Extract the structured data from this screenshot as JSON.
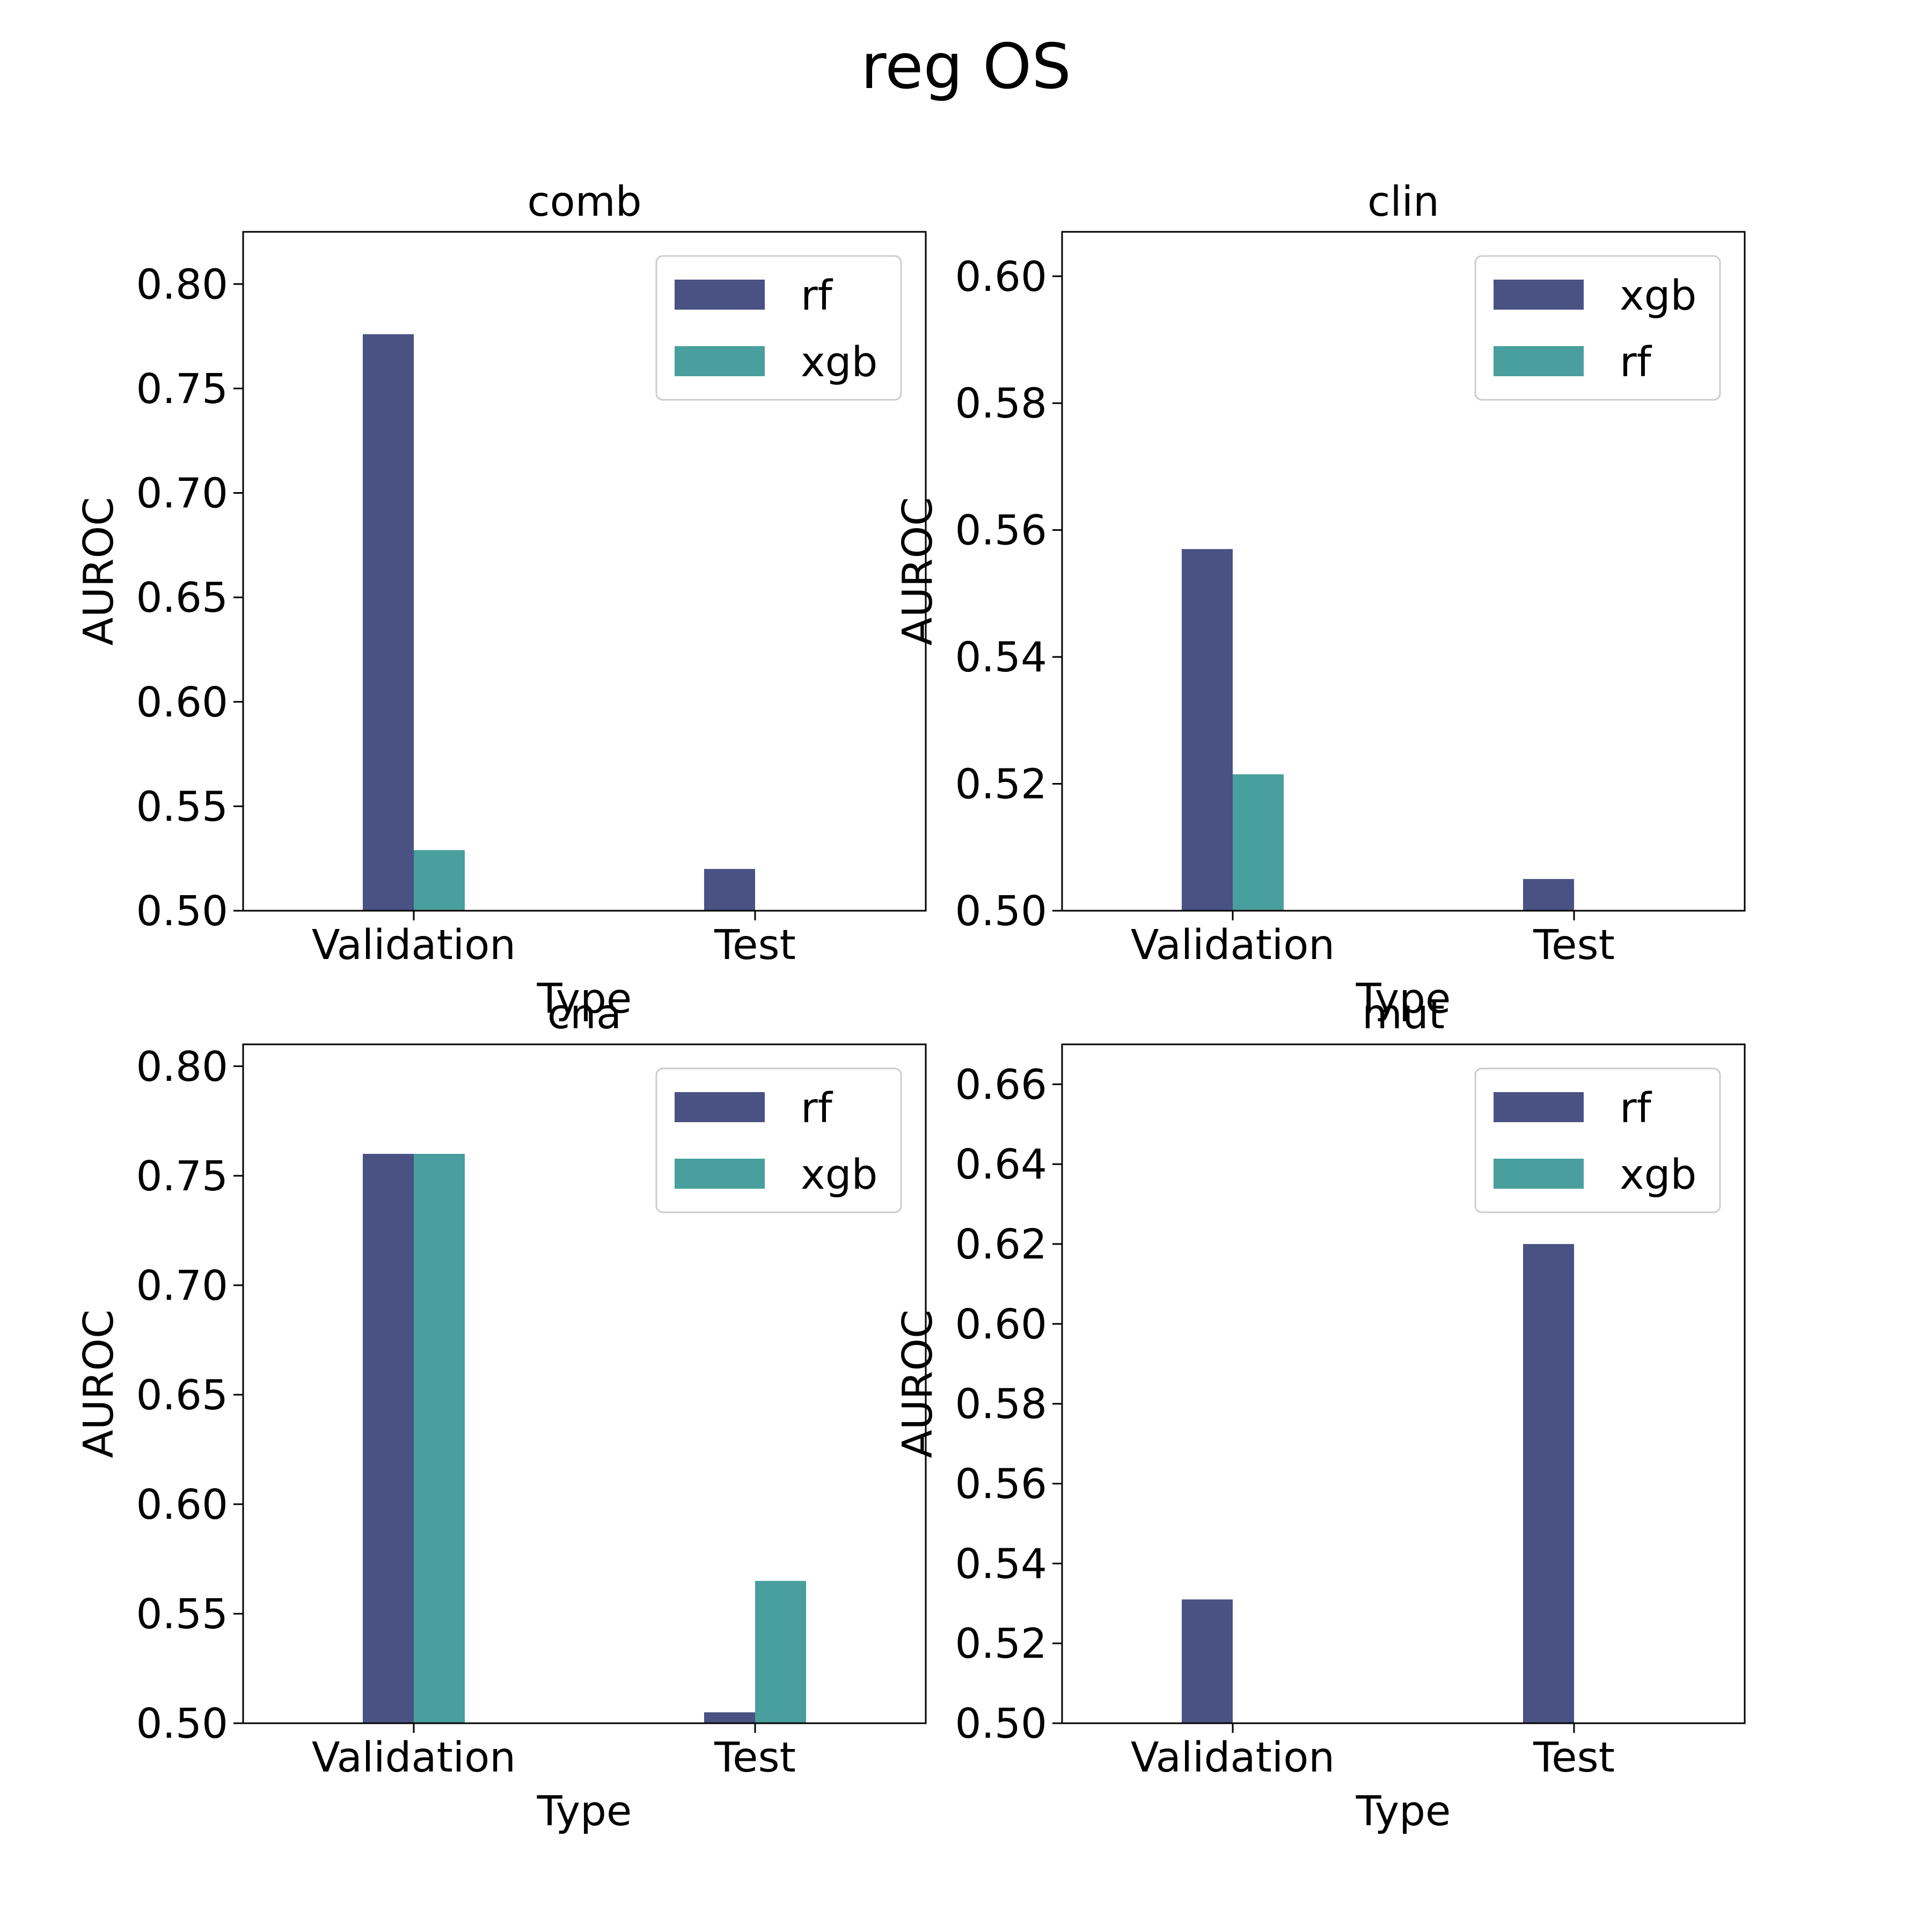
{
  "figure": {
    "suptitle": "reg OS",
    "colors": {
      "first_series": "#4a5283",
      "second_series": "#489f9d"
    }
  },
  "chart_data": [
    {
      "type": "bar",
      "title": "comb",
      "xlabel": "Type",
      "ylabel": "AUROC",
      "categories": [
        "Validation",
        "Test"
      ],
      "ylim": [
        0.5,
        0.825
      ],
      "yticks": [
        "0.50",
        "0.55",
        "0.60",
        "0.65",
        "0.70",
        "0.75",
        "0.80"
      ],
      "legend_position": "upper right",
      "series": [
        {
          "name": "rf",
          "color": "#4a5283",
          "values": [
            0.776,
            0.52
          ]
        },
        {
          "name": "xgb",
          "color": "#489f9d",
          "values": [
            0.529,
            0.5
          ]
        }
      ]
    },
    {
      "type": "bar",
      "title": "clin",
      "xlabel": "Type",
      "ylabel": "AUROC",
      "categories": [
        "Validation",
        "Test"
      ],
      "ylim": [
        0.5,
        0.607
      ],
      "yticks": [
        "0.50",
        "0.52",
        "0.54",
        "0.56",
        "0.58",
        "0.60"
      ],
      "legend_position": "upper right",
      "series": [
        {
          "name": "xgb",
          "color": "#4a5283",
          "values": [
            0.557,
            0.505
          ]
        },
        {
          "name": "rf",
          "color": "#489f9d",
          "values": [
            0.5215,
            0.5
          ]
        }
      ]
    },
    {
      "type": "bar",
      "title": "cna",
      "xlabel": "Type",
      "ylabel": "AUROC",
      "categories": [
        "Validation",
        "Test"
      ],
      "ylim": [
        0.5,
        0.81
      ],
      "yticks": [
        "0.50",
        "0.55",
        "0.60",
        "0.65",
        "0.70",
        "0.75",
        "0.80"
      ],
      "legend_position": "upper right",
      "series": [
        {
          "name": "rf",
          "color": "#4a5283",
          "values": [
            0.76,
            0.505
          ]
        },
        {
          "name": "xgb",
          "color": "#489f9d",
          "values": [
            0.76,
            0.565
          ]
        }
      ]
    },
    {
      "type": "bar",
      "title": "mut",
      "xlabel": "Type",
      "ylabel": "AUROC",
      "categories": [
        "Validation",
        "Test"
      ],
      "ylim": [
        0.5,
        0.67
      ],
      "yticks": [
        "0.50",
        "0.52",
        "0.54",
        "0.56",
        "0.58",
        "0.60",
        "0.62",
        "0.64",
        "0.66"
      ],
      "legend_position": "upper right",
      "series": [
        {
          "name": "rf",
          "color": "#4a5283",
          "values": [
            0.531,
            0.62
          ]
        },
        {
          "name": "xgb",
          "color": "#489f9d",
          "values": [
            0.5,
            0.5
          ]
        }
      ]
    }
  ]
}
